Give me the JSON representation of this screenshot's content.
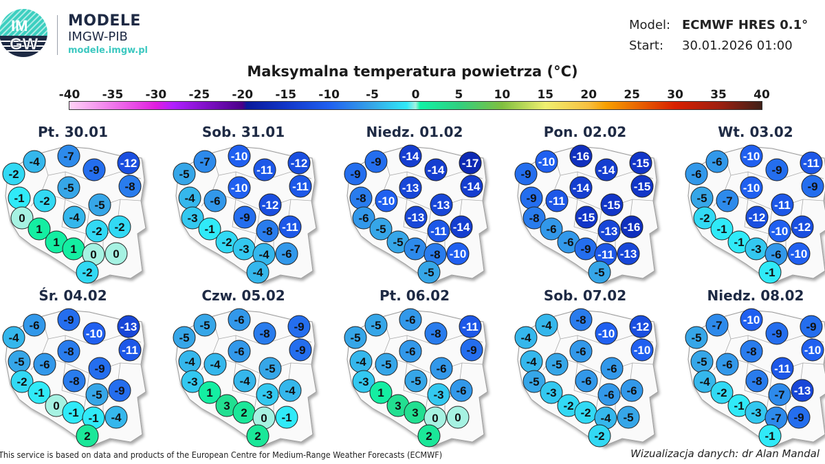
{
  "header": {
    "logo_text_top": "IM",
    "logo_text_bottom": "GW",
    "brand_title": "MODELE",
    "brand_subtitle": "IMGW-PIB",
    "brand_url": "modele.imgw.pl",
    "model_label": "Model:",
    "model_value": "ECMWF HRES 0.1°",
    "start_label": "Start:",
    "start_value": "30.01.2026 01:00"
  },
  "title": "Maksymalna temperatura powietrza (°C)",
  "colorbar": {
    "min": -40,
    "max": 40,
    "ticks": [
      "-40",
      "-35",
      "-30",
      "-25",
      "-20",
      "-15",
      "-10",
      "-5",
      "0",
      "5",
      "10",
      "15",
      "20",
      "25",
      "30",
      "35",
      "40"
    ],
    "stops": [
      [
        -40,
        "#ffd3f6"
      ],
      [
        -30,
        "#e01ee0"
      ],
      [
        -28,
        "#b020ff"
      ],
      [
        -20,
        "#4a0088"
      ],
      [
        -19.5,
        "#0a1a9a"
      ],
      [
        -15,
        "#1236c8"
      ],
      [
        -10,
        "#2060f0"
      ],
      [
        -5,
        "#36a6e8"
      ],
      [
        -1,
        "#30eaf8"
      ],
      [
        0,
        "#a6f2e2"
      ],
      [
        0.5,
        "#10f2a6"
      ],
      [
        5,
        "#30d080"
      ],
      [
        10,
        "#80c040"
      ],
      [
        15,
        "#f0f070"
      ],
      [
        20,
        "#f8c040"
      ],
      [
        22,
        "#f8a000"
      ],
      [
        30,
        "#d82000"
      ],
      [
        35,
        "#a02010"
      ],
      [
        40,
        "#402018"
      ]
    ]
  },
  "maps": [
    {
      "date": "Pt. 30.01",
      "values": [
        -4,
        -7,
        -9,
        -12,
        -2,
        -8,
        -1,
        -5,
        -2,
        -5,
        0,
        -4,
        1,
        -2,
        -2,
        1,
        1,
        0,
        0,
        -2
      ]
    },
    {
      "date": "Sob. 31.01",
      "values": [
        -7,
        -10,
        -11,
        -12,
        -5,
        -11,
        -4,
        -10,
        -6,
        -12,
        -3,
        -9,
        -1,
        -8,
        -11,
        -2,
        -3,
        -4,
        -6,
        -4
      ]
    },
    {
      "date": "Niedz. 01.02",
      "values": [
        -9,
        -14,
        -14,
        -17,
        -9,
        -14,
        -8,
        -13,
        -10,
        -13,
        -6,
        -13,
        -5,
        -11,
        -14,
        -5,
        -7,
        -8,
        -10,
        -5
      ]
    },
    {
      "date": "Pon. 02.02",
      "values": [
        -10,
        -16,
        -14,
        -15,
        -9,
        -15,
        -9,
        -14,
        -11,
        -15,
        -8,
        -15,
        -6,
        -13,
        -16,
        -6,
        -9,
        -11,
        -13,
        -5
      ]
    },
    {
      "date": "Wt. 03.02",
      "values": [
        -6,
        -10,
        -9,
        -11,
        -6,
        -9,
        -5,
        -10,
        -7,
        -11,
        -2,
        -12,
        -1,
        -10,
        -12,
        -1,
        -3,
        -6,
        -10,
        -1
      ]
    },
    {
      "date": "Śr. 04.02",
      "values": [
        -6,
        -9,
        -10,
        -13,
        -4,
        -11,
        -5,
        -8,
        -6,
        -9,
        -2,
        -8,
        -1,
        -5,
        -9,
        0,
        -1,
        -1,
        -4,
        2
      ]
    },
    {
      "date": "Czw. 05.02",
      "values": [
        -5,
        -6,
        -8,
        -9,
        -5,
        -9,
        -4,
        -6,
        -4,
        -5,
        -3,
        -4,
        1,
        -3,
        -4,
        3,
        2,
        0,
        -1,
        2
      ]
    },
    {
      "date": "Pt. 06.02",
      "values": [
        -5,
        -6,
        -8,
        -11,
        -5,
        -9,
        -4,
        -6,
        -5,
        -6,
        -3,
        -5,
        1,
        -3,
        -6,
        3,
        3,
        0,
        0,
        2
      ]
    },
    {
      "date": "Sob. 07.02",
      "values": [
        -4,
        -8,
        -10,
        -12,
        -4,
        -10,
        -4,
        -6,
        -5,
        -6,
        -5,
        -6,
        -3,
        -6,
        -6,
        -2,
        -2,
        -4,
        -5,
        -2
      ]
    },
    {
      "date": "Niedz. 08.02",
      "values": [
        -7,
        -10,
        -9,
        -9,
        -5,
        -10,
        -5,
        -8,
        -6,
        -11,
        -4,
        -8,
        -2,
        -7,
        -13,
        -1,
        -3,
        -7,
        -9,
        -1
      ]
    }
  ],
  "footer": {
    "source": "This service is based on data and products of the European Centre for Medium-Range Weather Forecasts (ECMWF)",
    "credit": "Wizualizacja danych: dr Alan Mandal"
  }
}
